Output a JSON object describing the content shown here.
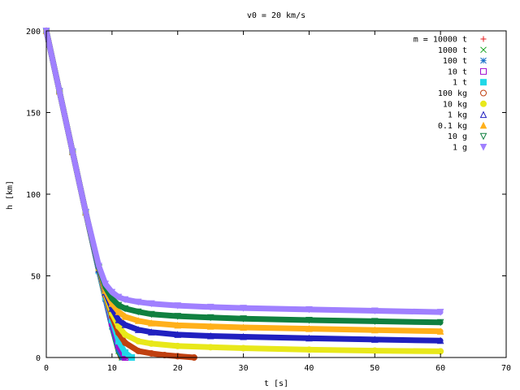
{
  "chart_data": {
    "type": "scatter",
    "title": "v0 = 20 km/s",
    "xlabel": "t [s]",
    "ylabel": "h [km]",
    "xlim": [
      0,
      70
    ],
    "ylim": [
      0,
      200
    ],
    "xticks": [
      "0",
      "10",
      "20",
      "30",
      "40",
      "50",
      "60",
      "70"
    ],
    "yticks": [
      "0",
      "50",
      "100",
      "150",
      "200"
    ],
    "grid": false,
    "legend_position": "top-right",
    "series": [
      {
        "name": "m = 10000 t",
        "symbol": "plus",
        "color": "#e41a1c",
        "x": [
          0,
          2,
          4,
          6,
          8,
          9,
          10,
          11,
          11.4
        ],
        "y": [
          200,
          163,
          126,
          89,
          53,
          36,
          19,
          4,
          0
        ]
      },
      {
        "name": "1000 t",
        "symbol": "cross",
        "color": "#11a11a",
        "x": [
          0,
          2,
          4,
          6,
          8,
          9,
          10,
          11,
          11.5
        ],
        "y": [
          200,
          163,
          126,
          89,
          53,
          36,
          19,
          4,
          0
        ]
      },
      {
        "name": "100 t",
        "symbol": "star",
        "color": "#1a70c8",
        "x": [
          0,
          2,
          4,
          6,
          8,
          9,
          10,
          11,
          11.6
        ],
        "y": [
          200,
          163,
          126,
          89,
          53,
          36,
          19,
          5,
          0
        ]
      },
      {
        "name": "10 t",
        "symbol": "square-open",
        "color": "#a010d0",
        "x": [
          0,
          2,
          4,
          6,
          8,
          9,
          10,
          11,
          12
        ],
        "y": [
          200,
          163,
          126,
          89,
          53,
          37,
          21,
          7,
          0
        ]
      },
      {
        "name": "1 t",
        "symbol": "square",
        "color": "#20d8e8",
        "x": [
          0,
          2,
          4,
          6,
          8,
          9,
          10,
          11,
          12,
          13
        ],
        "y": [
          200,
          163,
          126,
          89,
          53,
          37,
          23,
          10,
          3,
          0
        ]
      },
      {
        "name": "100 kg",
        "symbol": "circle-open",
        "color": "#c04010",
        "x": [
          0,
          2,
          4,
          6,
          8,
          9,
          10,
          11,
          12,
          14,
          16,
          18,
          20,
          22.5
        ],
        "y": [
          200,
          163,
          126,
          89,
          54,
          38,
          25,
          15,
          9,
          4,
          2.5,
          1.5,
          0.8,
          0
        ]
      },
      {
        "name": "10 kg",
        "symbol": "circle",
        "color": "#e8e81a",
        "x": [
          0,
          2,
          4,
          6,
          8,
          9,
          10,
          11,
          12,
          14,
          16,
          20,
          25,
          30,
          40,
          50,
          60
        ],
        "y": [
          200,
          163,
          126,
          89,
          54,
          39,
          27,
          19,
          14,
          10,
          8.5,
          7,
          6.3,
          5.7,
          4.8,
          4.2,
          3.8
        ]
      },
      {
        "name": "1 kg",
        "symbol": "triangle-open",
        "color": "#2020c0",
        "x": [
          0,
          2,
          4,
          6,
          8,
          9,
          10,
          11,
          12,
          14,
          16,
          20,
          25,
          30,
          40,
          50,
          60
        ],
        "y": [
          200,
          163,
          126,
          89,
          54,
          40,
          30,
          23,
          20,
          17,
          15.5,
          14,
          13.2,
          12.7,
          11.8,
          11,
          10.3
        ]
      },
      {
        "name": "0.1 kg",
        "symbol": "triangle",
        "color": "#ffb01a",
        "x": [
          0,
          2,
          4,
          6,
          8,
          9,
          10,
          11,
          12,
          14,
          16,
          20,
          25,
          30,
          40,
          50,
          60
        ],
        "y": [
          200,
          163,
          126,
          89,
          55,
          41,
          33,
          28,
          25,
          22.5,
          21,
          19.7,
          19,
          18.4,
          17.6,
          16.8,
          16
        ]
      },
      {
        "name": "10 g",
        "symbol": "triangle-down-open",
        "color": "#108040",
        "x": [
          0,
          2,
          4,
          6,
          8,
          9,
          10,
          11,
          12,
          14,
          16,
          20,
          25,
          30,
          40,
          50,
          60
        ],
        "y": [
          200,
          163,
          126,
          89,
          55,
          43,
          36,
          32,
          30,
          28,
          26.5,
          25.3,
          24.5,
          23.8,
          22.9,
          22.2,
          21.5
        ]
      },
      {
        "name": "1 g",
        "symbol": "triangle-down",
        "color": "#a080ff",
        "x": [
          0,
          2,
          4,
          6,
          8,
          9,
          10,
          11,
          12,
          14,
          16,
          20,
          25,
          30,
          40,
          50,
          60
        ],
        "y": [
          200,
          163,
          126,
          89,
          56,
          45,
          40,
          37,
          35.5,
          34,
          33,
          31.8,
          30.9,
          30.3,
          29.4,
          28.6,
          27.8
        ]
      }
    ]
  }
}
